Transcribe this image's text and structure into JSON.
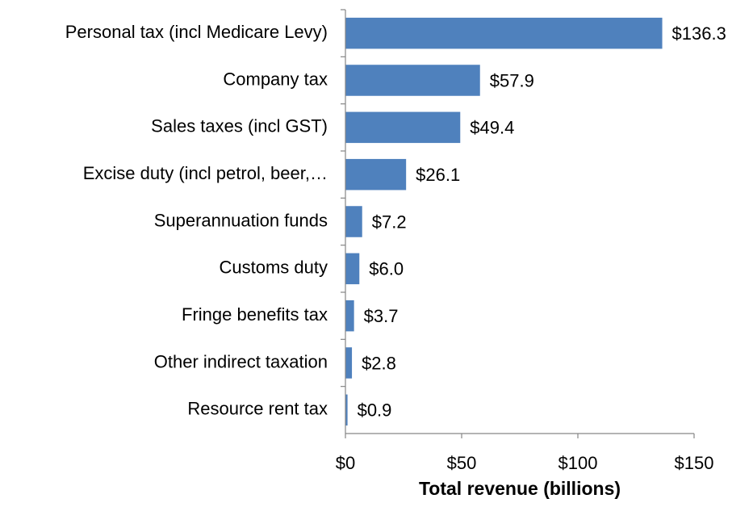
{
  "chart_data": {
    "type": "bar",
    "orientation": "horizontal",
    "x_label": "Total revenue (billions)",
    "categories": [
      "Personal tax (incl Medicare Levy)",
      "Company tax",
      "Sales taxes (incl GST)",
      "Excise duty (incl petrol, beer,…",
      "Superannuation funds",
      "Customs duty",
      "Fringe benefits tax",
      "Other indirect taxation",
      "Resource rent tax"
    ],
    "values": [
      136.3,
      57.9,
      49.4,
      26.1,
      7.2,
      6.0,
      3.7,
      2.8,
      0.9
    ],
    "value_labels": [
      "$136.3",
      "$57.9",
      "$49.4",
      "$26.1",
      "$7.2",
      "$6.0",
      "$3.7",
      "$2.8",
      "$0.9"
    ],
    "color": "#4f81bd",
    "xlim": [
      0,
      150
    ],
    "xticks": [
      {
        "value": 0,
        "label": "$0"
      },
      {
        "value": 50,
        "label": "$50"
      },
      {
        "value": 100,
        "label": "$100"
      },
      {
        "value": 150,
        "label": "$150"
      }
    ]
  }
}
